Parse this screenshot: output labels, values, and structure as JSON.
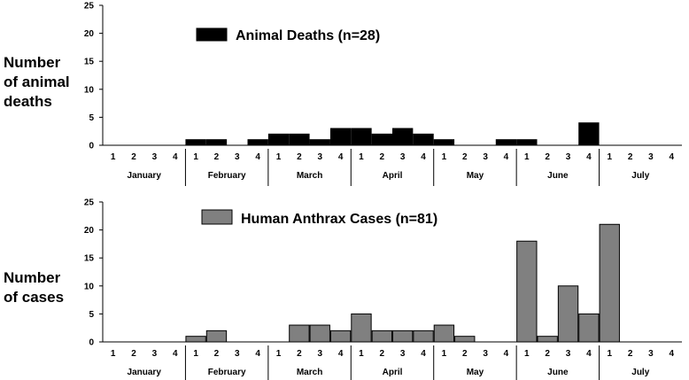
{
  "chart_data": [
    {
      "type": "bar",
      "title": "",
      "ylabel_lines": [
        "Number",
        "of animal",
        "deaths"
      ],
      "legend_label": "Animal Deaths (n=28)",
      "legend_position": "top-center",
      "months": [
        "January",
        "February",
        "March",
        "April",
        "May",
        "June",
        "July"
      ],
      "week_labels": [
        "1",
        "2",
        "3",
        "4"
      ],
      "ylim": [
        0,
        25
      ],
      "yticks": [
        0,
        5,
        10,
        15,
        20,
        25
      ],
      "grid": false,
      "colors": {
        "bar": "#000000",
        "edge": "#000000"
      },
      "values": [
        0,
        0,
        0,
        0,
        1,
        1,
        0,
        1,
        2,
        2,
        1,
        3,
        3,
        2,
        3,
        2,
        1,
        0,
        0,
        1,
        1,
        0,
        0,
        4,
        0,
        0,
        0,
        0
      ]
    },
    {
      "type": "bar",
      "title": "",
      "ylabel_lines": [
        "Number",
        "of cases"
      ],
      "legend_label": "Human Anthrax Cases (n=81)",
      "legend_position": "top-center",
      "months": [
        "January",
        "February",
        "March",
        "April",
        "May",
        "June",
        "July"
      ],
      "week_labels": [
        "1",
        "2",
        "3",
        "4"
      ],
      "ylim": [
        0,
        25
      ],
      "yticks": [
        0,
        5,
        10,
        15,
        20,
        25
      ],
      "grid": false,
      "colors": {
        "bar": "#808080",
        "edge": "#000000"
      },
      "values": [
        0,
        0,
        0,
        0,
        1,
        2,
        0,
        0,
        0,
        3,
        3,
        2,
        5,
        2,
        2,
        2,
        3,
        1,
        0,
        0,
        18,
        1,
        10,
        5,
        21,
        0,
        0,
        0
      ]
    }
  ]
}
